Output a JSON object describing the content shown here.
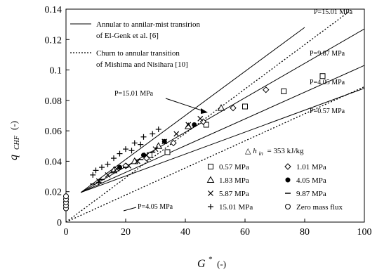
{
  "chart_data": {
    "type": "scatter",
    "title": "",
    "xlabel": {
      "main": "G",
      "sup": "*",
      "unit": "(-)"
    },
    "ylabel": {
      "main": "q",
      "sub": "CHF",
      "unit": "(-)"
    },
    "xlim": [
      0,
      100
    ],
    "ylim": [
      0,
      0.14
    ],
    "xticks": [
      "0",
      "20",
      "40",
      "60",
      "80",
      "100"
    ],
    "yticks": [
      "0",
      "0.02",
      "0.04",
      "0.06",
      "0.08",
      "0.1",
      "0.12",
      "0.14"
    ],
    "inlet_subcooling": {
      "symbol": "△",
      "h": "h",
      "sub": "in",
      "value": "= 353 kJ/kg"
    },
    "correlation_legend": [
      {
        "line1": "Annular to annilar-mist transirion",
        "line2": "of El-Genk et al. [6]",
        "style": "solid"
      },
      {
        "line1": "Churn to annular transition",
        "line2": "of Mishima and Nisihara [10]",
        "style": "dotted"
      }
    ],
    "pressure_labels": {
      "top_right": "P=15.01 MPa",
      "p987": "P=9.87 MPa",
      "p405_right": "P=4.05 MPa",
      "p057": "P=0.57 MPa",
      "p1501_arrow": "P=15.01 MPa",
      "p405_bottom": "P=4.05 MPa"
    },
    "lines": {
      "solid": [
        {
          "pressure": "15.01 MPa",
          "x": [
            5,
            80
          ],
          "y": [
            0.0195,
            0.128
          ]
        },
        {
          "pressure": "9.87 MPa",
          "x": [
            5,
            100
          ],
          "y": [
            0.0195,
            0.127
          ]
        },
        {
          "pressure": "4.05 MPa",
          "x": [
            5,
            100
          ],
          "y": [
            0.0195,
            0.103
          ]
        },
        {
          "pressure": "0.57 MPa",
          "x": [
            5,
            100
          ],
          "y": [
            0.0195,
            0.088
          ]
        }
      ],
      "dotted": [
        {
          "pressure": "15.01 MPa",
          "x": [
            0,
            96
          ],
          "y": [
            0.0,
            0.14
          ]
        },
        {
          "pressure": "4.05 MPa",
          "x": [
            0,
            100
          ],
          "y": [
            0.0,
            0.089
          ]
        }
      ]
    },
    "series": [
      {
        "name": "0.57 MPa",
        "marker": "square",
        "points": [
          [
            28,
            0.044
          ],
          [
            34,
            0.046
          ],
          [
            47,
            0.064
          ],
          [
            60,
            0.076
          ],
          [
            73,
            0.086
          ],
          [
            86,
            0.096
          ]
        ]
      },
      {
        "name": "1.01 MPa",
        "marker": "diamond",
        "points": [
          [
            20,
            0.037
          ],
          [
            27,
            0.042
          ],
          [
            36,
            0.052
          ],
          [
            46,
            0.066
          ],
          [
            56,
            0.075
          ],
          [
            67,
            0.087
          ]
        ]
      },
      {
        "name": "1.83 MPa",
        "marker": "triangle",
        "points": [
          [
            16,
            0.034
          ],
          [
            23,
            0.04
          ],
          [
            31,
            0.05
          ],
          [
            41,
            0.063
          ],
          [
            52,
            0.075
          ]
        ]
      },
      {
        "name": "4.05 MPa",
        "marker": "filled-circle",
        "points": [
          [
            18,
            0.036
          ],
          [
            26,
            0.044
          ],
          [
            33,
            0.053
          ],
          [
            43,
            0.064
          ]
        ]
      },
      {
        "name": "5.87 MPa",
        "marker": "x",
        "points": [
          [
            11,
            0.027
          ],
          [
            14,
            0.031
          ],
          [
            17,
            0.035
          ],
          [
            21,
            0.037
          ],
          [
            24,
            0.04
          ],
          [
            27,
            0.044
          ],
          [
            30,
            0.048
          ],
          [
            33,
            0.053
          ],
          [
            37,
            0.058
          ],
          [
            41,
            0.064
          ],
          [
            45,
            0.068
          ]
        ]
      },
      {
        "name": "9.87 MPa",
        "marker": "dash",
        "points": [
          [
            9,
            0.025
          ],
          [
            12,
            0.028
          ],
          [
            16,
            0.033
          ],
          [
            20,
            0.036
          ],
          [
            25,
            0.041
          ],
          [
            29,
            0.046
          ]
        ]
      },
      {
        "name": "15.01 MPa",
        "marker": "plus",
        "points": [
          [
            9,
            0.031
          ],
          [
            10,
            0.034
          ],
          [
            12,
            0.036
          ],
          [
            14,
            0.038
          ],
          [
            16,
            0.042
          ],
          [
            18,
            0.045
          ],
          [
            20,
            0.048
          ],
          [
            23,
            0.052
          ],
          [
            26,
            0.056
          ],
          [
            29,
            0.058
          ],
          [
            11,
            0.026
          ],
          [
            22,
            0.047
          ],
          [
            25,
            0.051
          ],
          [
            31,
            0.061
          ]
        ]
      },
      {
        "name": "Zero mass flux",
        "marker": "open-circle",
        "points": [
          [
            0,
            0.009
          ],
          [
            0,
            0.011
          ],
          [
            0,
            0.013
          ],
          [
            0,
            0.015
          ],
          [
            0,
            0.017
          ]
        ]
      }
    ]
  }
}
